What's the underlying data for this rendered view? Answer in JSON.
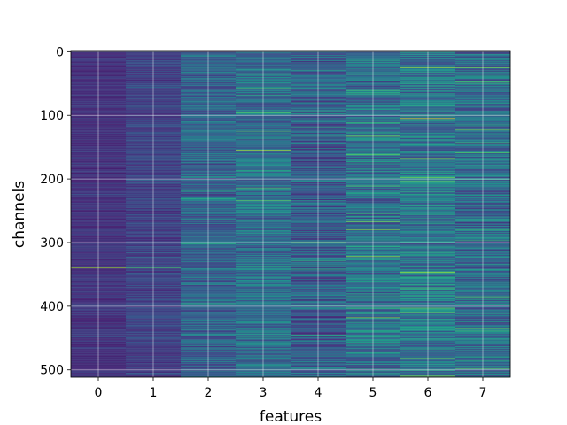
{
  "chart_data": {
    "type": "heatmap",
    "title": "",
    "xlabel": "features",
    "ylabel": "channels",
    "x_categories": [
      "0",
      "1",
      "2",
      "3",
      "4",
      "5",
      "6",
      "7"
    ],
    "y_ticks": [
      0,
      100,
      200,
      300,
      400,
      500
    ],
    "y_range": [
      0,
      511
    ],
    "y_inverted": true,
    "n_channels": 512,
    "n_features": 8,
    "colormap": "viridis",
    "grid": true,
    "feature_mean_level": [
      0.15,
      0.2,
      0.32,
      0.36,
      0.3,
      0.38,
      0.4,
      0.36
    ],
    "feature_spread": [
      0.06,
      0.08,
      0.15,
      0.17,
      0.18,
      0.2,
      0.2,
      0.2
    ],
    "highlight_stripes": [
      {
        "feature": 0,
        "channel": 340,
        "level": 0.85
      },
      {
        "feature": 1,
        "channel": 340,
        "level": 0.7
      },
      {
        "feature": 3,
        "channel": 155,
        "level": 0.9
      },
      {
        "feature": 5,
        "channel": 65,
        "level": 0.65
      },
      {
        "feature": 5,
        "channel": 280,
        "level": 0.8
      },
      {
        "feature": 5,
        "channel": 322,
        "level": 0.85
      },
      {
        "feature": 6,
        "channel": 25,
        "level": 0.85
      },
      {
        "feature": 6,
        "channel": 105,
        "level": 0.95
      },
      {
        "feature": 6,
        "channel": 220,
        "level": 0.6
      },
      {
        "feature": 6,
        "channel": 410,
        "level": 0.85
      },
      {
        "feature": 7,
        "channel": 10,
        "level": 0.85
      },
      {
        "feature": 7,
        "channel": 435,
        "level": 0.8
      }
    ]
  }
}
